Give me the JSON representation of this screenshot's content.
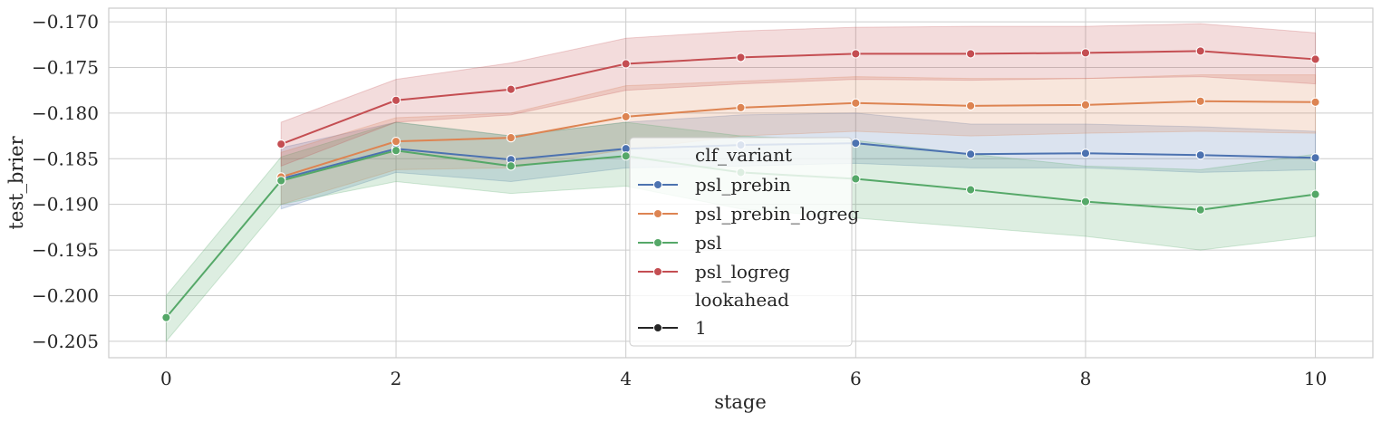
{
  "chart_data": {
    "type": "line",
    "xlabel": "stage",
    "ylabel": "test_brier",
    "xlim": [
      -0.5,
      10.5
    ],
    "ylim": [
      -0.2068,
      -0.1685
    ],
    "xticks": [
      0,
      2,
      4,
      6,
      8,
      10
    ],
    "xtick_labels": [
      "0",
      "2",
      "4",
      "6",
      "8",
      "10"
    ],
    "yticks": [
      -0.205,
      -0.2,
      -0.195,
      -0.19,
      -0.185,
      -0.18,
      -0.175,
      -0.17
    ],
    "ytick_labels": [
      "−0.205",
      "−0.200",
      "−0.195",
      "−0.190",
      "−0.185",
      "−0.180",
      "−0.175",
      "−0.170"
    ],
    "grid": true,
    "legend": {
      "position": "center",
      "title1": "clf_variant",
      "title2": "lookahead",
      "style_entry": "1"
    },
    "series": [
      {
        "name": "psl_prebin",
        "color": "#4c72b0",
        "x": [
          1,
          2,
          3,
          4,
          5,
          6,
          7,
          8,
          9,
          10
        ],
        "values": [
          -0.1872,
          -0.1839,
          -0.1851,
          -0.1839,
          -0.1835,
          -0.1833,
          -0.1845,
          -0.1844,
          -0.1846,
          -0.1849
        ],
        "lower": [
          -0.1905,
          -0.1865,
          -0.1875,
          -0.186,
          -0.1858,
          -0.1855,
          -0.186,
          -0.186,
          -0.1865,
          -0.1862
        ],
        "upper": [
          -0.1838,
          -0.181,
          -0.1825,
          -0.181,
          -0.1802,
          -0.18,
          -0.1812,
          -0.1812,
          -0.1815,
          -0.182
        ]
      },
      {
        "name": "psl_prebin_logreg",
        "color": "#dd8452",
        "x": [
          1,
          2,
          3,
          4,
          5,
          6,
          7,
          8,
          9,
          10
        ],
        "values": [
          -0.187,
          -0.1831,
          -0.1827,
          -0.1804,
          -0.1794,
          -0.1789,
          -0.1792,
          -0.1791,
          -0.1787,
          -0.1788
        ],
        "lower": [
          -0.19,
          -0.1862,
          -0.186,
          -0.184,
          -0.1825,
          -0.182,
          -0.1825,
          -0.1822,
          -0.182,
          -0.1822
        ],
        "upper": [
          -0.1843,
          -0.1805,
          -0.18,
          -0.177,
          -0.1765,
          -0.176,
          -0.1762,
          -0.1762,
          -0.1758,
          -0.1758
        ]
      },
      {
        "name": "psl",
        "color": "#55a868",
        "x": [
          0,
          1,
          2,
          3,
          4,
          5,
          6,
          7,
          8,
          9,
          10
        ],
        "values": [
          -0.2024,
          -0.1874,
          -0.1841,
          -0.1858,
          -0.1847,
          -0.1865,
          -0.1872,
          -0.1884,
          -0.1897,
          -0.1906,
          -0.1889
        ],
        "lower": [
          -0.205,
          -0.19,
          -0.1875,
          -0.1888,
          -0.188,
          -0.1905,
          -0.1915,
          -0.1925,
          -0.1935,
          -0.195,
          -0.1935
        ],
        "upper": [
          -0.2,
          -0.1848,
          -0.181,
          -0.1825,
          -0.181,
          -0.1825,
          -0.183,
          -0.1845,
          -0.1858,
          -0.1862,
          -0.1845
        ]
      },
      {
        "name": "psl_logreg",
        "color": "#c44e52",
        "x": [
          1,
          2,
          3,
          4,
          5,
          6,
          7,
          8,
          9,
          10
        ],
        "values": [
          -0.1834,
          -0.1786,
          -0.1774,
          -0.1746,
          -0.1739,
          -0.1735,
          -0.1735,
          -0.1734,
          -0.1732,
          -0.1741
        ],
        "lower": [
          -0.1858,
          -0.181,
          -0.1802,
          -0.1775,
          -0.1768,
          -0.1763,
          -0.1764,
          -0.1762,
          -0.176,
          -0.1768
        ],
        "upper": [
          -0.181,
          -0.1763,
          -0.1745,
          -0.1718,
          -0.171,
          -0.1706,
          -0.1705,
          -0.1705,
          -0.1702,
          -0.1712
        ]
      }
    ]
  }
}
